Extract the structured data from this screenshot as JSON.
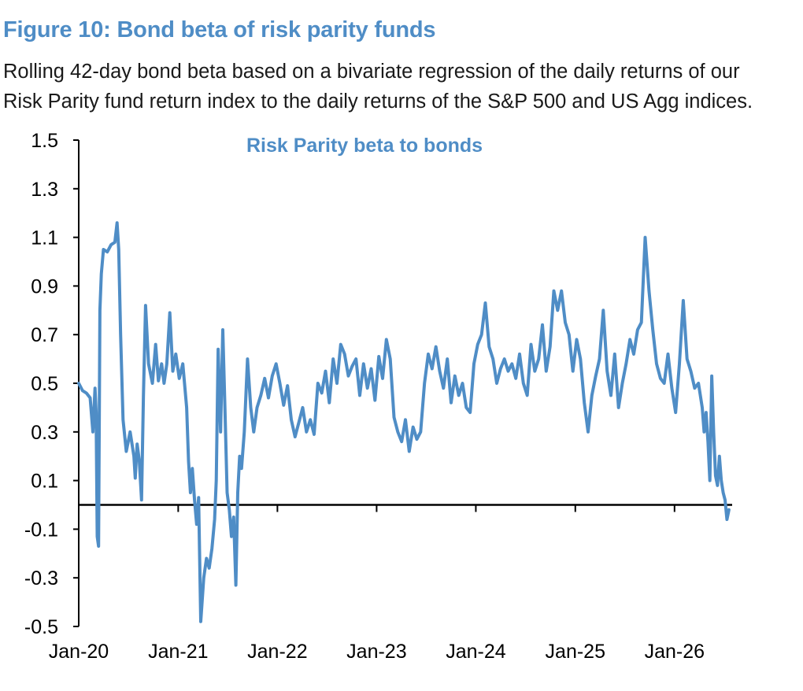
{
  "figure": {
    "title": "Figure 10: Bond beta of risk parity funds",
    "subtitle_lines": [
      "Rolling 42-day bond beta based on a bivariate regression of the daily returns of our",
      "Risk Parity fund return index to the daily returns of the S&P 500 and US Agg indices."
    ]
  },
  "colors": {
    "title": "#4f8dc6",
    "series": "#4f8dc6",
    "axis": "#000000"
  },
  "chart_data": {
    "type": "line",
    "title": "Risk Parity beta to bonds",
    "xlabel": "",
    "ylabel": "",
    "ylim": [
      -0.5,
      1.5
    ],
    "yticks": [
      1.5,
      1.3,
      1.1,
      0.9,
      0.7,
      0.5,
      0.3,
      0.1,
      -0.1,
      -0.3,
      -0.5
    ],
    "yticklabels": [
      "1.5",
      "1.3",
      "1.1",
      "0.9",
      "0.7",
      "0.5",
      "0.3",
      "0.1",
      "-0.1",
      "-0.3",
      "-0.5"
    ],
    "xlim": [
      "2020-01-01",
      "2026-08-01"
    ],
    "xticks": [
      "2020-01-01",
      "2021-01-01",
      "2022-01-01",
      "2023-01-01",
      "2024-01-01",
      "2025-01-01",
      "2026-01-01"
    ],
    "xticklabels": [
      "Jan-20",
      "Jan-21",
      "Jan-22",
      "Jan-23",
      "Jan-24",
      "Jan-25",
      "Jan-26"
    ],
    "zero_line": 0,
    "grid": false,
    "series": [
      {
        "x": [
          "2020-01-01",
          "2020-01-15",
          "2020-01-29",
          "2020-02-12",
          "2020-02-22",
          "2020-03-01",
          "2020-03-05",
          "2020-03-09",
          "2020-03-14",
          "2020-03-19",
          "2020-03-24",
          "2020-04-01",
          "2020-04-15",
          "2020-04-29",
          "2020-05-13",
          "2020-05-21",
          "2020-05-27",
          "2020-06-03",
          "2020-06-12",
          "2020-06-24",
          "2020-07-08",
          "2020-07-22",
          "2020-07-27",
          "2020-08-03",
          "2020-08-11",
          "2020-08-19",
          "2020-08-26",
          "2020-09-03",
          "2020-09-14",
          "2020-09-28",
          "2020-10-10",
          "2020-10-20",
          "2020-11-01",
          "2020-11-10",
          "2020-11-20",
          "2020-12-01",
          "2020-12-12",
          "2020-12-23",
          "2021-01-05",
          "2021-01-18",
          "2021-02-01",
          "2021-02-08",
          "2021-02-15",
          "2021-02-22",
          "2021-03-02",
          "2021-03-10",
          "2021-03-17",
          "2021-03-25",
          "2021-04-05",
          "2021-04-15",
          "2021-04-25",
          "2021-05-05",
          "2021-05-15",
          "2021-05-21",
          "2021-05-28",
          "2021-06-06",
          "2021-06-14",
          "2021-06-22",
          "2021-06-30",
          "2021-07-08",
          "2021-07-16",
          "2021-07-24",
          "2021-08-01",
          "2021-08-08",
          "2021-08-15",
          "2021-08-22",
          "2021-09-01",
          "2021-09-13",
          "2021-09-25",
          "2021-10-06",
          "2021-10-18",
          "2021-11-01",
          "2021-11-15",
          "2021-11-29",
          "2021-12-13",
          "2021-12-27",
          "2022-01-10",
          "2022-01-24",
          "2022-02-07",
          "2022-02-21",
          "2022-03-07",
          "2022-03-21",
          "2022-04-04",
          "2022-04-18",
          "2022-05-02",
          "2022-05-16",
          "2022-05-30",
          "2022-06-13",
          "2022-06-27",
          "2022-07-11",
          "2022-07-25",
          "2022-08-08",
          "2022-08-22",
          "2022-09-05",
          "2022-09-19",
          "2022-10-03",
          "2022-10-17",
          "2022-10-31",
          "2022-11-14",
          "2022-11-28",
          "2022-12-12",
          "2022-12-26",
          "2023-01-09",
          "2023-01-23",
          "2023-02-06",
          "2023-02-20",
          "2023-03-06",
          "2023-03-20",
          "2023-04-03",
          "2023-04-17",
          "2023-05-01",
          "2023-05-15",
          "2023-05-29",
          "2023-06-12",
          "2023-06-26",
          "2023-07-10",
          "2023-07-24",
          "2023-08-07",
          "2023-08-21",
          "2023-09-04",
          "2023-09-18",
          "2023-10-02",
          "2023-10-16",
          "2023-10-30",
          "2023-11-13",
          "2023-11-27",
          "2023-12-11",
          "2023-12-25",
          "2024-01-08",
          "2024-01-22",
          "2024-02-05",
          "2024-02-19",
          "2024-03-04",
          "2024-03-18",
          "2024-04-01",
          "2024-04-15",
          "2024-04-29",
          "2024-05-13",
          "2024-05-27",
          "2024-06-10",
          "2024-06-24",
          "2024-07-08",
          "2024-07-22",
          "2024-08-05",
          "2024-08-19",
          "2024-09-02",
          "2024-09-16",
          "2024-09-30",
          "2024-10-14",
          "2024-10-28",
          "2024-11-11",
          "2024-11-25",
          "2024-12-09",
          "2024-12-23",
          "2025-01-06",
          "2025-01-20",
          "2025-02-03",
          "2025-02-17",
          "2025-03-03",
          "2025-03-17",
          "2025-03-31",
          "2025-04-14",
          "2025-04-28",
          "2025-05-12",
          "2025-05-26",
          "2025-06-09",
          "2025-06-23",
          "2025-07-07",
          "2025-07-21",
          "2025-08-04",
          "2025-08-18",
          "2025-09-01",
          "2025-09-15",
          "2025-09-29",
          "2025-10-13",
          "2025-10-27",
          "2025-11-10",
          "2025-11-24",
          "2025-12-08",
          "2025-12-22",
          "2026-01-05",
          "2026-01-19",
          "2026-02-02",
          "2026-02-16",
          "2026-03-02",
          "2026-03-16",
          "2026-03-30",
          "2026-04-13",
          "2026-04-20",
          "2026-04-27",
          "2026-05-04",
          "2026-05-11",
          "2026-05-18",
          "2026-05-25",
          "2026-06-01",
          "2026-06-08",
          "2026-06-15",
          "2026-06-22",
          "2026-06-29",
          "2026-07-06",
          "2026-07-13",
          "2026-07-20"
        ],
        "values": [
          0.5,
          0.47,
          0.46,
          0.44,
          0.3,
          0.48,
          0.38,
          -0.13,
          -0.17,
          0.8,
          0.95,
          1.05,
          1.04,
          1.07,
          1.08,
          1.16,
          1.05,
          0.7,
          0.35,
          0.22,
          0.3,
          0.2,
          0.11,
          0.25,
          0.18,
          0.02,
          0.45,
          0.82,
          0.58,
          0.5,
          0.66,
          0.51,
          0.58,
          0.5,
          0.58,
          0.79,
          0.55,
          0.62,
          0.52,
          0.58,
          0.4,
          0.18,
          0.05,
          0.15,
          0.02,
          -0.08,
          0.03,
          -0.48,
          -0.3,
          -0.22,
          -0.26,
          -0.18,
          -0.06,
          0.1,
          0.64,
          0.3,
          0.72,
          0.4,
          0.05,
          -0.02,
          -0.13,
          -0.05,
          -0.33,
          0.05,
          0.2,
          0.15,
          0.3,
          0.6,
          0.4,
          0.3,
          0.4,
          0.45,
          0.52,
          0.44,
          0.53,
          0.58,
          0.5,
          0.41,
          0.49,
          0.35,
          0.28,
          0.34,
          0.4,
          0.3,
          0.35,
          0.29,
          0.5,
          0.46,
          0.55,
          0.42,
          0.6,
          0.5,
          0.66,
          0.62,
          0.53,
          0.57,
          0.6,
          0.45,
          0.58,
          0.48,
          0.56,
          0.43,
          0.61,
          0.52,
          0.68,
          0.6,
          0.36,
          0.3,
          0.26,
          0.35,
          0.22,
          0.32,
          0.27,
          0.3,
          0.5,
          0.62,
          0.56,
          0.65,
          0.55,
          0.48,
          0.6,
          0.42,
          0.53,
          0.45,
          0.5,
          0.4,
          0.38,
          0.58,
          0.66,
          0.7,
          0.83,
          0.65,
          0.6,
          0.5,
          0.56,
          0.6,
          0.55,
          0.58,
          0.52,
          0.62,
          0.5,
          0.45,
          0.66,
          0.55,
          0.6,
          0.74,
          0.55,
          0.65,
          0.88,
          0.8,
          0.88,
          0.75,
          0.7,
          0.55,
          0.68,
          0.6,
          0.42,
          0.3,
          0.45,
          0.53,
          0.6,
          0.8,
          0.55,
          0.45,
          0.62,
          0.4,
          0.5,
          0.58,
          0.68,
          0.62,
          0.72,
          0.75,
          1.1,
          0.88,
          0.72,
          0.58,
          0.52,
          0.5,
          0.62,
          0.48,
          0.38,
          0.58,
          0.84,
          0.6,
          0.55,
          0.48,
          0.5,
          0.4,
          0.3,
          0.38,
          0.26,
          0.1,
          0.53,
          0.3,
          0.12,
          0.08,
          0.2,
          0.1,
          0.05,
          0.02,
          -0.06,
          -0.02
        ]
      }
    ]
  }
}
